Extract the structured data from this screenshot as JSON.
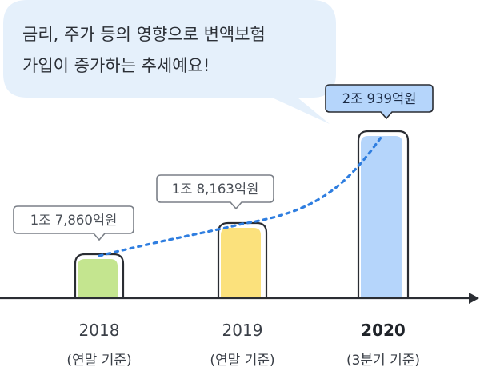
{
  "speech_bubble": {
    "lines": [
      "금리, 주가 등의 영향으로 변액보험",
      "가입이 증가하는 추세예요!"
    ]
  },
  "colors": {
    "bubble_bg": "#e5f0fb",
    "bar_2018": "#c4e58f",
    "bar_2019": "#fbe17c",
    "bar_2020": "#b5d5fb",
    "outline": "#2a2d33",
    "trend_line": "#2f7ee0",
    "highlight_label_bg": "#b5d5fb"
  },
  "chart_data": {
    "type": "bar",
    "categories": [
      "2018",
      "2019",
      "2020"
    ],
    "category_notes": [
      "(연말 기준)",
      "(연말 기준)",
      "(3분기 기준)"
    ],
    "values": [
      1.786,
      1.8163,
      2.0939
    ],
    "value_labels": [
      "1조 7,860억원",
      "1조 8,163억원",
      "2조 939억원"
    ],
    "units": "조원",
    "highlighted_category": "2020",
    "trend_line": "dotted",
    "legend": "none",
    "grid": false
  }
}
